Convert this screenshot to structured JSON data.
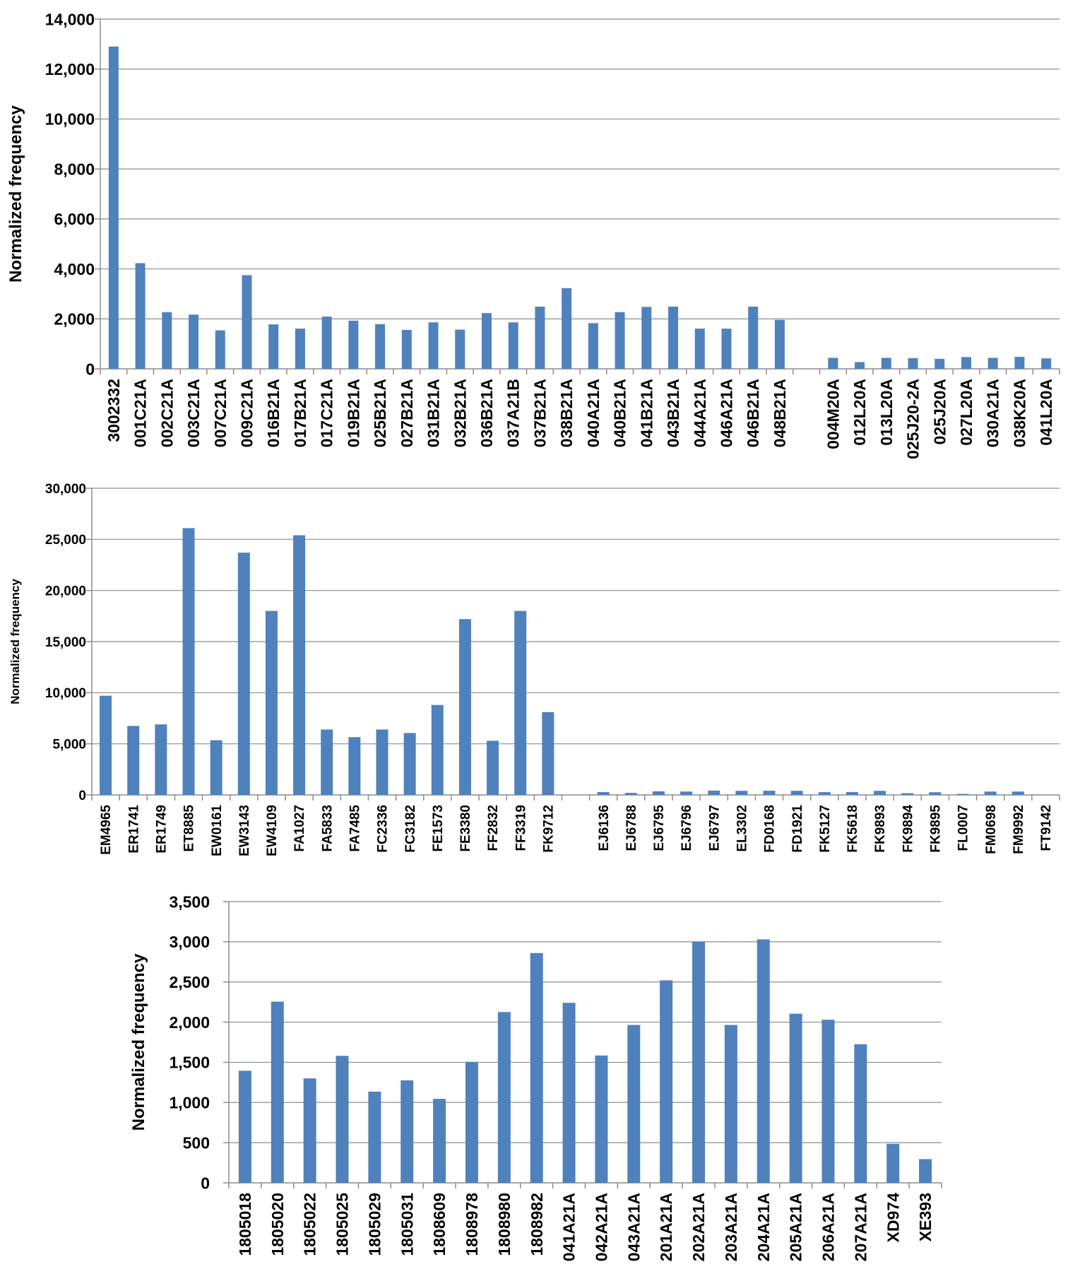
{
  "chart_data": [
    {
      "type": "bar",
      "title": "",
      "xlabel": "",
      "ylabel": "Normalized frequency",
      "ylim": [
        0,
        14000
      ],
      "yticks": [
        0,
        2000,
        4000,
        6000,
        8000,
        10000,
        12000,
        14000
      ],
      "ytick_labels": [
        "0",
        "2,000",
        "4,000",
        "6,000",
        "8,000",
        "10,000",
        "12,000",
        "14,000"
      ],
      "grid": true,
      "categories": [
        "3002332",
        "001C21A",
        "002C21A",
        "003C21A",
        "007C21A",
        "009C21A",
        "016B21A",
        "017B21A",
        "017C21A",
        "019B21A",
        "025B21A",
        "027B21A",
        "031B21A",
        "032B21A",
        "036B21A",
        "037A21B",
        "037B21A",
        "038B21A",
        "040A21A",
        "040B21A",
        "041B21A",
        "043B21A",
        "044A21A",
        "046A21A",
        "046B21A",
        "048B21A",
        "",
        "004M20A",
        "012L20A",
        "013L20A",
        "025J20-2A",
        "025J20A",
        "027L20A",
        "030A21A",
        "038K20A",
        "041L20A"
      ],
      "values": [
        12900,
        4230,
        2270,
        2170,
        1540,
        3750,
        1780,
        1610,
        2090,
        1930,
        1790,
        1560,
        1860,
        1570,
        2230,
        1860,
        2490,
        3230,
        1830,
        2270,
        2480,
        2490,
        1610,
        1610,
        2490,
        1960,
        null,
        440,
        270,
        440,
        430,
        400,
        470,
        440,
        480,
        420
      ]
    },
    {
      "type": "bar",
      "title": "",
      "xlabel": "",
      "ylabel": "Normalized frequency",
      "ylim": [
        0,
        30000
      ],
      "yticks": [
        0,
        5000,
        10000,
        15000,
        20000,
        25000,
        30000
      ],
      "ytick_labels": [
        "0",
        "5,000",
        "10,000",
        "15,000",
        "20,000",
        "25,000",
        "30,000"
      ],
      "grid": true,
      "categories": [
        "EM4965",
        "ER1741",
        "ER1749",
        "ET8885",
        "EW0161",
        "EW3143",
        "EW4109",
        "FA1027",
        "FA5833",
        "FA7485",
        "FC2336",
        "FC3182",
        "FE1573",
        "FE3380",
        "FF2832",
        "FF3319",
        "FK9712",
        "",
        "EJ6136",
        "EJ6788",
        "EJ6795",
        "EJ6796",
        "EJ6797",
        "EL3302",
        "FD0168",
        "FD1921",
        "FK5127",
        "FK5618",
        "FK9893",
        "FK9894",
        "FK9895",
        "FL0007",
        "FM0698",
        "FM9992",
        "FT9142"
      ],
      "values": [
        9700,
        6750,
        6900,
        26100,
        5350,
        23700,
        18000,
        25400,
        6400,
        5650,
        6400,
        6050,
        8800,
        17200,
        5300,
        18000,
        8100,
        null,
        280,
        200,
        350,
        330,
        420,
        400,
        410,
        400,
        270,
        280,
        400,
        170,
        260,
        100,
        330,
        330,
        0
      ]
    },
    {
      "type": "bar",
      "title": "",
      "xlabel": "",
      "ylabel": "Normalized frequency",
      "ylim": [
        0,
        3500
      ],
      "yticks": [
        0,
        500,
        1000,
        1500,
        2000,
        2500,
        3000,
        3500
      ],
      "ytick_labels": [
        "0",
        "500",
        "1,000",
        "1,500",
        "2,000",
        "2,500",
        "3,000",
        "3,500"
      ],
      "grid": true,
      "categories": [
        "1805018",
        "1805020",
        "1805022",
        "1805025",
        "1805029",
        "1805031",
        "1808609",
        "1808978",
        "1808980",
        "1808982",
        "041A21A",
        "042A21A",
        "043A21A",
        "201A21A",
        "202A21A",
        "203A21A",
        "204A21A",
        "205A21A",
        "206A21A",
        "207A21A",
        "XD974",
        "XE393"
      ],
      "values": [
        1395,
        2255,
        1300,
        1580,
        1135,
        1275,
        1045,
        1505,
        2125,
        2860,
        2240,
        1585,
        1965,
        2520,
        3000,
        1965,
        3030,
        2105,
        2030,
        1725,
        485,
        295
      ]
    }
  ]
}
